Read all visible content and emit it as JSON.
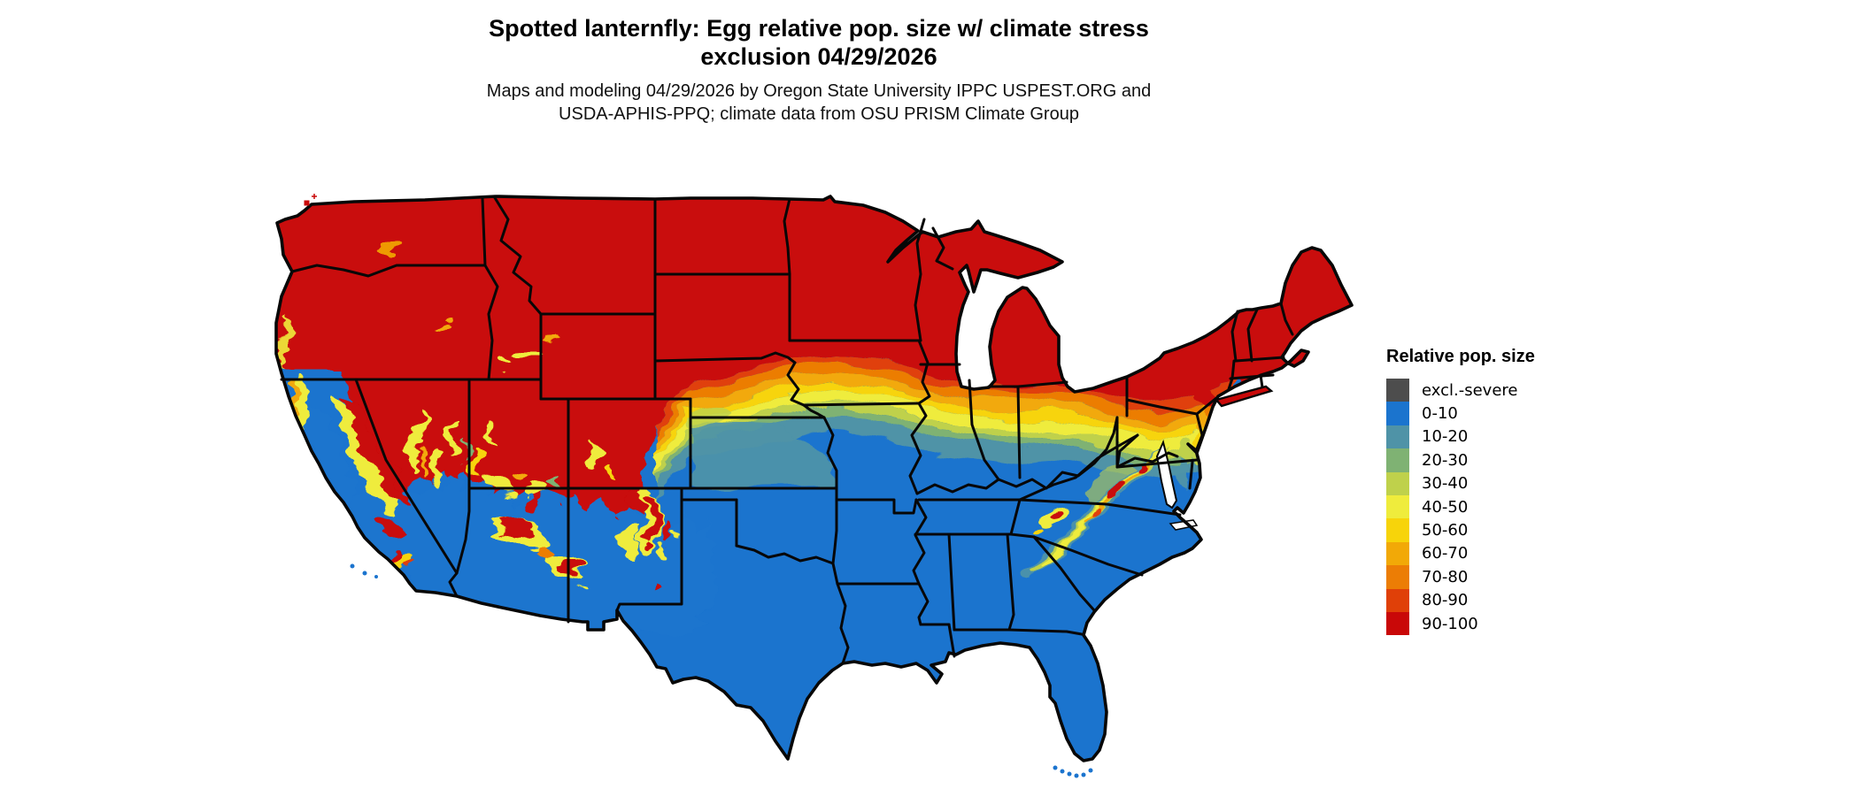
{
  "title": {
    "line1": "Spotted lanternfly: Egg relative pop. size w/ climate stress",
    "line2": "exclusion 04/29/2026"
  },
  "subtitle": {
    "line1": "Maps and modeling 04/29/2026 by Oregon State University IPPC USPEST.ORG and",
    "line2": "USDA-APHIS-PPQ; climate data from OSU PRISM Climate Group"
  },
  "legend": {
    "title": "Relative pop. size",
    "items": [
      {
        "label": "excl.-severe",
        "color": "#4D4D4D"
      },
      {
        "label": "0-10",
        "color": "#1B74CE"
      },
      {
        "label": "10-20",
        "color": "#4F93A7"
      },
      {
        "label": "20-30",
        "color": "#7FB273"
      },
      {
        "label": "30-40",
        "color": "#BFD14B"
      },
      {
        "label": "40-50",
        "color": "#EFEC3C"
      },
      {
        "label": "50-60",
        "color": "#F7D40A"
      },
      {
        "label": "60-70",
        "color": "#F2A907"
      },
      {
        "label": "70-80",
        "color": "#EC7D05"
      },
      {
        "label": "80-90",
        "color": "#E04008"
      },
      {
        "label": "90-100",
        "color": "#C90808"
      }
    ]
  },
  "map": {
    "region": "Contiguous United States",
    "border_color": "#070707",
    "ocean_color": "#ffffff",
    "palette": {
      "excl": "#4D4D4D",
      "p0_10": "#1B74CE",
      "p10_20": "#4F93A7",
      "p20_30": "#7FB273",
      "p30_40": "#BFD14B",
      "p40_50": "#EFEC3C",
      "p50_60": "#F7D40A",
      "p60_70": "#F2A907",
      "p70_80": "#EC7D05",
      "p80_90": "#E04008",
      "p90_100": "#C90808"
    }
  }
}
